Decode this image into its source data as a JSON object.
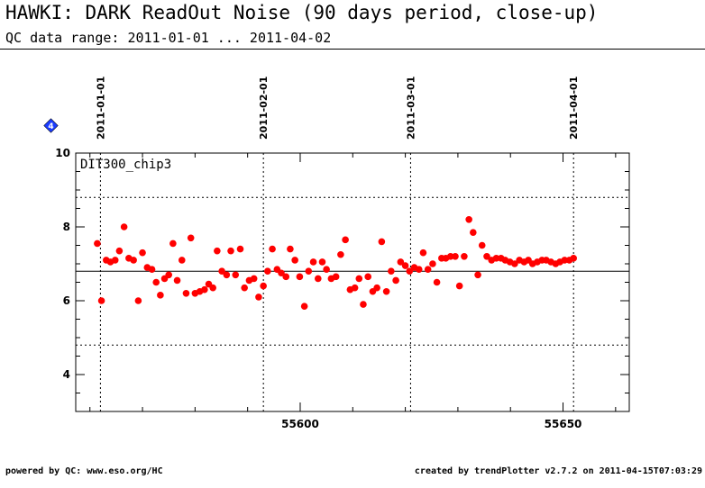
{
  "header": {
    "title": "HAWKI: DARK ReadOut Noise (90 days period, close-up)",
    "subtitle": "QC data range: 2011-01-01 ... 2011-04-02"
  },
  "footer": {
    "left": "powered by QC: www.eso.org/HC",
    "right": "created by trendPlotter v2.7.2 on 2011-04-15T07:03:29"
  },
  "chart_data": {
    "type": "scatter",
    "panel_label": "DIT300_chip3",
    "flag_marker": "4",
    "xlim": [
      55557.3,
      55662.6
    ],
    "ylim": [
      3,
      10
    ],
    "y_ticks": [
      4,
      6,
      8,
      10
    ],
    "x_ticks": [
      55600,
      55650
    ],
    "date_markers": [
      {
        "mjd": 55562,
        "label": "2011-01-01"
      },
      {
        "mjd": 55593,
        "label": "2011-02-01"
      },
      {
        "mjd": 55621,
        "label": "2011-03-01"
      },
      {
        "mjd": 55652,
        "label": "2011-04-01"
      }
    ],
    "reference_lines": {
      "mean": 6.8,
      "upper": 8.8,
      "lower": 4.8
    },
    "grid": false,
    "point_color": "#ff0000",
    "flag_color": "#1a3cff",
    "series": [
      {
        "x": [
          55561.4,
          55562.2,
          55563.1,
          55563.9,
          55564.8,
          55565.6,
          55566.5,
          55567.4,
          55568.3,
          55569.2,
          55570.0,
          55570.9,
          55571.8,
          55572.6,
          55573.4,
          55574.2,
          55575.0,
          55575.8,
          55576.6,
          55577.5,
          55578.3,
          55579.2,
          55580.0,
          55580.9,
          55581.8,
          55582.6,
          55583.4,
          55584.2,
          55585.1,
          55586.0,
          55586.8,
          55587.7,
          55588.6,
          55589.4,
          55590.3,
          55591.2,
          55592.1,
          55593.0,
          55593.8,
          55594.7,
          55595.6,
          55596.4,
          55597.3,
          55598.1,
          55599.0,
          55599.9,
          55600.8,
          55601.6,
          55602.5,
          55603.4,
          55604.2,
          55605.0,
          55605.9,
          55606.8,
          55607.7,
          55608.6,
          55609.5,
          55610.4,
          55611.2,
          55612.0,
          55612.9,
          55613.8,
          55614.6,
          55615.5,
          55616.4,
          55617.3,
          55618.2,
          55619.1,
          55620.0,
          55620.8,
          55621.7,
          55622.6,
          55623.4,
          55624.3,
          55625.2,
          55626.0,
          55626.9,
          55627.7,
          55628.6,
          55629.5,
          55630.3,
          55631.2,
          55632.1,
          55632.9,
          55633.8,
          55634.6,
          55635.5,
          55636.4,
          55637.3,
          55638.2,
          55639.0,
          55639.9,
          55640.8,
          55641.7,
          55642.6,
          55643.4,
          55644.2,
          55645.1,
          55646.0,
          55646.8,
          55647.7,
          55648.6,
          55649.4,
          55650.3,
          55651.2,
          55652.0
        ],
        "y": [
          7.55,
          6.0,
          7.1,
          7.05,
          7.1,
          7.35,
          8.0,
          7.15,
          7.1,
          6.0,
          7.3,
          6.9,
          6.85,
          6.5,
          6.15,
          6.6,
          6.7,
          7.55,
          6.55,
          7.1,
          6.2,
          7.7,
          6.2,
          6.25,
          6.3,
          6.45,
          6.35,
          7.35,
          6.8,
          6.7,
          7.35,
          6.7,
          7.4,
          6.35,
          6.55,
          6.6,
          6.1,
          6.4,
          6.8,
          7.4,
          6.85,
          6.75,
          6.65,
          7.4,
          7.1,
          6.65,
          5.85,
          6.8,
          7.05,
          6.6,
          7.05,
          6.85,
          6.6,
          6.65,
          7.25,
          7.65,
          6.3,
          6.35,
          6.6,
          5.9,
          6.65,
          6.25,
          6.35,
          7.6,
          6.25,
          6.8,
          6.55,
          7.05,
          6.95,
          6.8,
          6.9,
          6.85,
          7.3,
          6.85,
          7.0,
          6.5,
          7.15,
          7.15,
          7.2,
          7.2,
          6.4,
          7.2,
          8.2,
          7.85,
          6.7,
          7.5,
          7.2,
          7.1,
          7.15,
          7.15,
          7.1,
          7.05,
          7.0,
          7.1,
          7.05,
          7.1,
          7.0,
          7.05,
          7.1,
          7.1,
          7.05,
          7.0,
          7.05,
          7.1,
          7.1,
          7.15
        ]
      }
    ]
  }
}
